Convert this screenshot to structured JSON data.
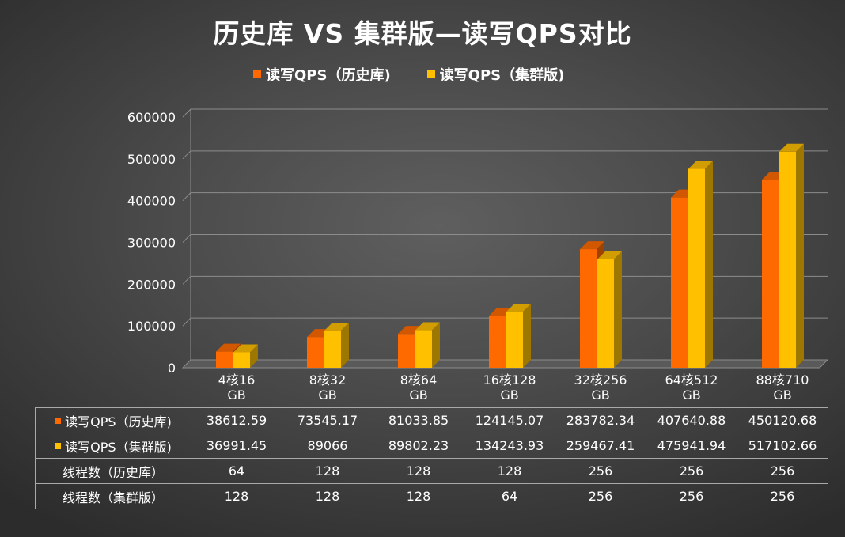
{
  "chart_data": {
    "type": "bar",
    "title": "历史库 VS 集群版—读写QPS对比",
    "categories": [
      [
        "4核16",
        "GB"
      ],
      [
        "8核32",
        "GB"
      ],
      [
        "8核64",
        "GB"
      ],
      [
        "16核128",
        "GB"
      ],
      [
        "32核256",
        "GB"
      ],
      [
        "64核512",
        "GB"
      ],
      [
        "88核710",
        "GB"
      ]
    ],
    "series": [
      {
        "name": "读写QPS（历史库)",
        "table_label": "读写QPS（历史库)",
        "color": "#ff6a00",
        "values": [
          38612.59,
          73545.17,
          81033.85,
          124145.07,
          283782.34,
          407640.88,
          450120.68
        ],
        "value_labels": [
          "38612.59",
          "73545.17",
          "81033.85",
          "124145.07",
          "283782.34",
          "407640.88",
          "450120.68"
        ]
      },
      {
        "name": "读写QPS（集群版)",
        "table_label": "读写QPS（集群版)",
        "color": "#ffc000",
        "values": [
          36991.45,
          89066,
          89802.23,
          134243.93,
          259467.41,
          475941.94,
          517102.66
        ],
        "value_labels": [
          "36991.45",
          "89066",
          "89802.23",
          "134243.93",
          "259467.41",
          "475941.94",
          "517102.66"
        ]
      }
    ],
    "extra_rows": [
      {
        "label": "线程数（历史库）",
        "values": [
          "64",
          "128",
          "128",
          "128",
          "256",
          "256",
          "256"
        ]
      },
      {
        "label": "线程数（集群版）",
        "values": [
          "128",
          "128",
          "128",
          "64",
          "256",
          "256",
          "256"
        ]
      }
    ],
    "ylim": [
      0,
      600000
    ],
    "yticks": [
      0,
      100000,
      200000,
      300000,
      400000,
      500000,
      600000
    ],
    "ytick_labels": [
      "0",
      "100000",
      "200000",
      "300000",
      "400000",
      "500000",
      "600000"
    ],
    "legend": "top-center",
    "grid": true,
    "xlabel": "",
    "ylabel": ""
  }
}
